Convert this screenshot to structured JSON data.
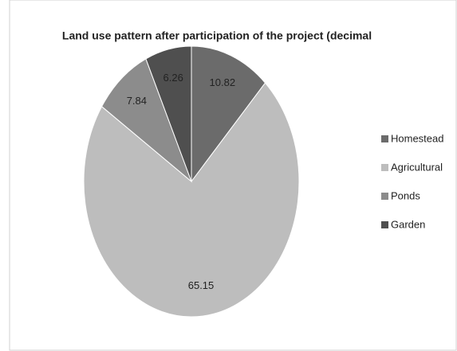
{
  "chart_data": {
    "type": "pie",
    "title": "Land use pattern after participation of the project (decimal",
    "categories": [
      "Homestead",
      "Agricultural",
      "Ponds",
      "Garden"
    ],
    "values": [
      10.82,
      65.15,
      7.84,
      6.26
    ],
    "colors": [
      "#6b6b6b",
      "#bdbdbd",
      "#8c8c8c",
      "#4f4f4f"
    ],
    "legend": "right"
  }
}
